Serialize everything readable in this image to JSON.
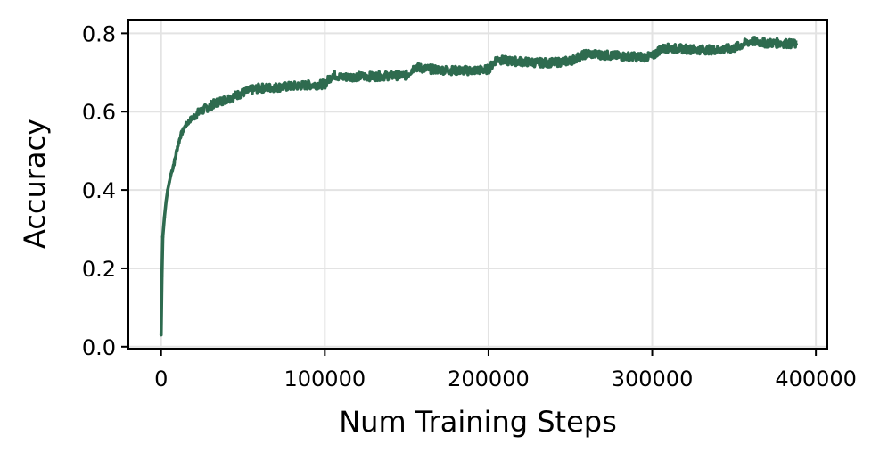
{
  "chart_data": {
    "type": "line",
    "title": "",
    "xlabel": "Num Training Steps",
    "ylabel": "Accuracy",
    "xlim": [
      -20000,
      407000
    ],
    "ylim": [
      -0.005,
      0.835
    ],
    "xticks": [
      0,
      100000,
      200000,
      300000,
      400000
    ],
    "xtick_labels": [
      "0",
      "100000",
      "200000",
      "300000",
      "400000"
    ],
    "yticks": [
      0.0,
      0.2,
      0.4,
      0.6,
      0.8
    ],
    "ytick_labels": [
      "0.0",
      "0.2",
      "0.4",
      "0.6",
      "0.8"
    ],
    "grid": true,
    "legend": "none",
    "series": [
      {
        "color": "#2e6b4f",
        "x": [
          0,
          500,
          1000,
          2000,
          3000,
          4000,
          5000,
          6000,
          8000,
          10000,
          12000,
          15000,
          18000,
          22000,
          26000,
          30000,
          35000,
          40000,
          45000,
          50000,
          55000,
          60000,
          70000,
          80000,
          90000,
          100000,
          105000,
          110000,
          120000,
          130000,
          140000,
          150000,
          155000,
          160000,
          170000,
          180000,
          190000,
          200000,
          205000,
          210000,
          220000,
          230000,
          240000,
          250000,
          260000,
          270000,
          280000,
          290000,
          300000,
          305000,
          310000,
          320000,
          330000,
          340000,
          350000,
          360000,
          365000,
          370000,
          380000,
          388000
        ],
        "y": [
          0.03,
          0.18,
          0.28,
          0.33,
          0.37,
          0.4,
          0.42,
          0.44,
          0.47,
          0.51,
          0.54,
          0.565,
          0.58,
          0.595,
          0.605,
          0.615,
          0.625,
          0.632,
          0.64,
          0.648,
          0.655,
          0.66,
          0.662,
          0.665,
          0.668,
          0.67,
          0.695,
          0.688,
          0.69,
          0.69,
          0.692,
          0.693,
          0.715,
          0.71,
          0.707,
          0.705,
          0.705,
          0.708,
          0.735,
          0.73,
          0.728,
          0.725,
          0.725,
          0.73,
          0.748,
          0.745,
          0.742,
          0.74,
          0.74,
          0.76,
          0.762,
          0.76,
          0.758,
          0.758,
          0.762,
          0.78,
          0.778,
          0.775,
          0.775,
          0.772
        ]
      }
    ]
  }
}
